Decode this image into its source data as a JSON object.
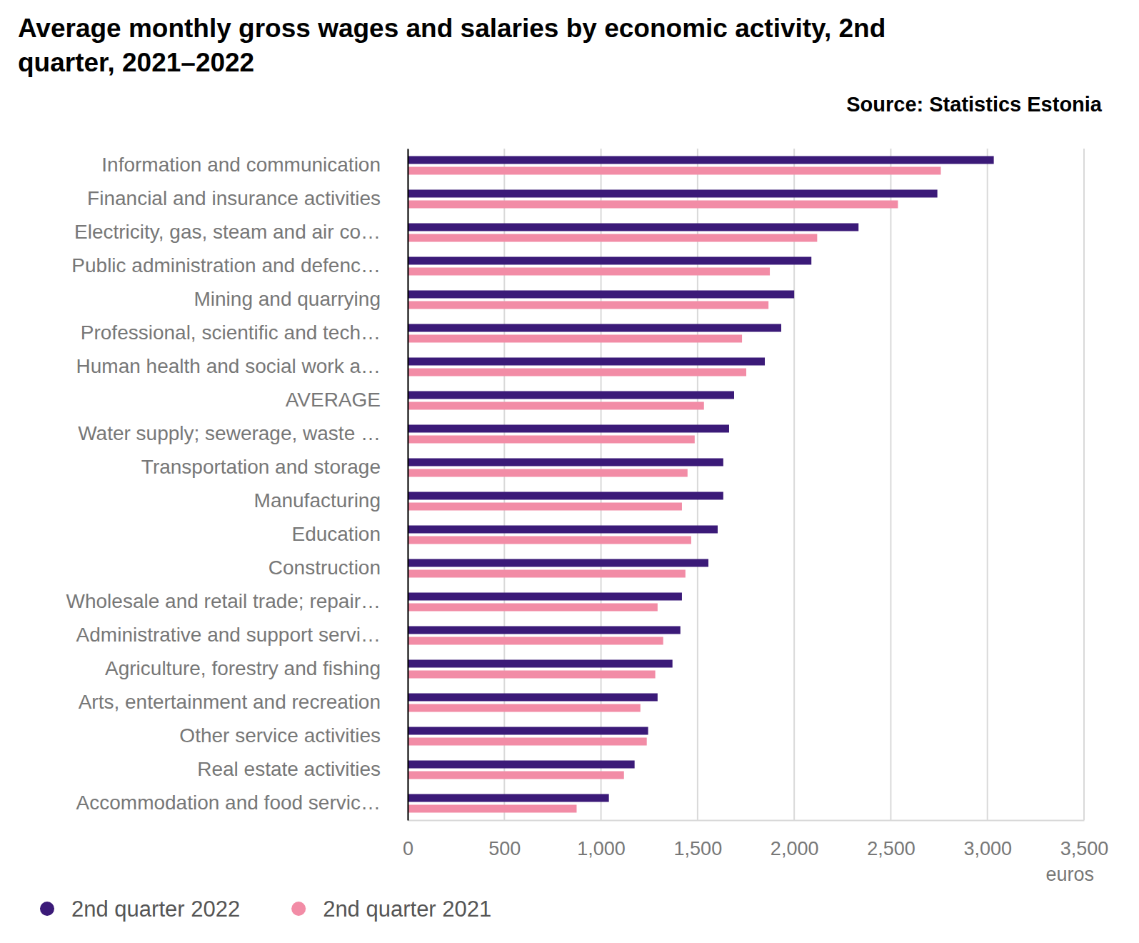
{
  "chart_data": {
    "type": "bar",
    "orientation": "horizontal",
    "title": "Average monthly gross wages and salaries by economic activity, 2nd quarter, 2021–2022",
    "source": "Source: Statistics Estonia",
    "x_label": "euros",
    "categories": [
      "Information and communication",
      "Financial and insurance activities",
      "Electricity, gas, steam and air co…",
      "Public administration and defenc…",
      "Mining and quarrying",
      "Professional, scientific and tech…",
      "Human health and social work a…",
      "AVERAGE",
      "Water supply; sewerage, waste …",
      "Transportation and storage",
      "Manufacturing",
      "Education",
      "Construction",
      "Wholesale and retail trade; repair…",
      "Administrative and support servi…",
      "Agriculture, forestry and fishing",
      "Arts, entertainment and recreation",
      "Other service activities",
      "Real estate activities",
      "Accommodation and food servic…"
    ],
    "series": [
      {
        "name": "2nd quarter 2022",
        "color": "#3b1a78",
        "values": [
          3033,
          2741,
          2333,
          2089,
          2000,
          1933,
          1848,
          1689,
          1663,
          1633,
          1633,
          1604,
          1556,
          1419,
          1411,
          1370,
          1293,
          1244,
          1174,
          1041
        ]
      },
      {
        "name": "2nd quarter 2021",
        "color": "#f28ca6",
        "values": [
          2759,
          2537,
          2119,
          1874,
          1867,
          1730,
          1752,
          1533,
          1485,
          1448,
          1419,
          1467,
          1437,
          1293,
          1322,
          1281,
          1204,
          1237,
          1119,
          874
        ]
      }
    ],
    "xlim": [
      0,
      3500
    ],
    "xticks": [
      0,
      500,
      {
        "value": 1000,
        "label": "1,000"
      },
      {
        "value": 1500,
        "label": "1,500"
      },
      {
        "value": 2000,
        "label": "2,000"
      },
      {
        "value": 2500,
        "label": "2,500"
      },
      {
        "value": 3000,
        "label": "3,000"
      },
      {
        "value": 3500,
        "label": "3,500"
      }
    ],
    "grid": true,
    "legend": "bottom-left"
  }
}
